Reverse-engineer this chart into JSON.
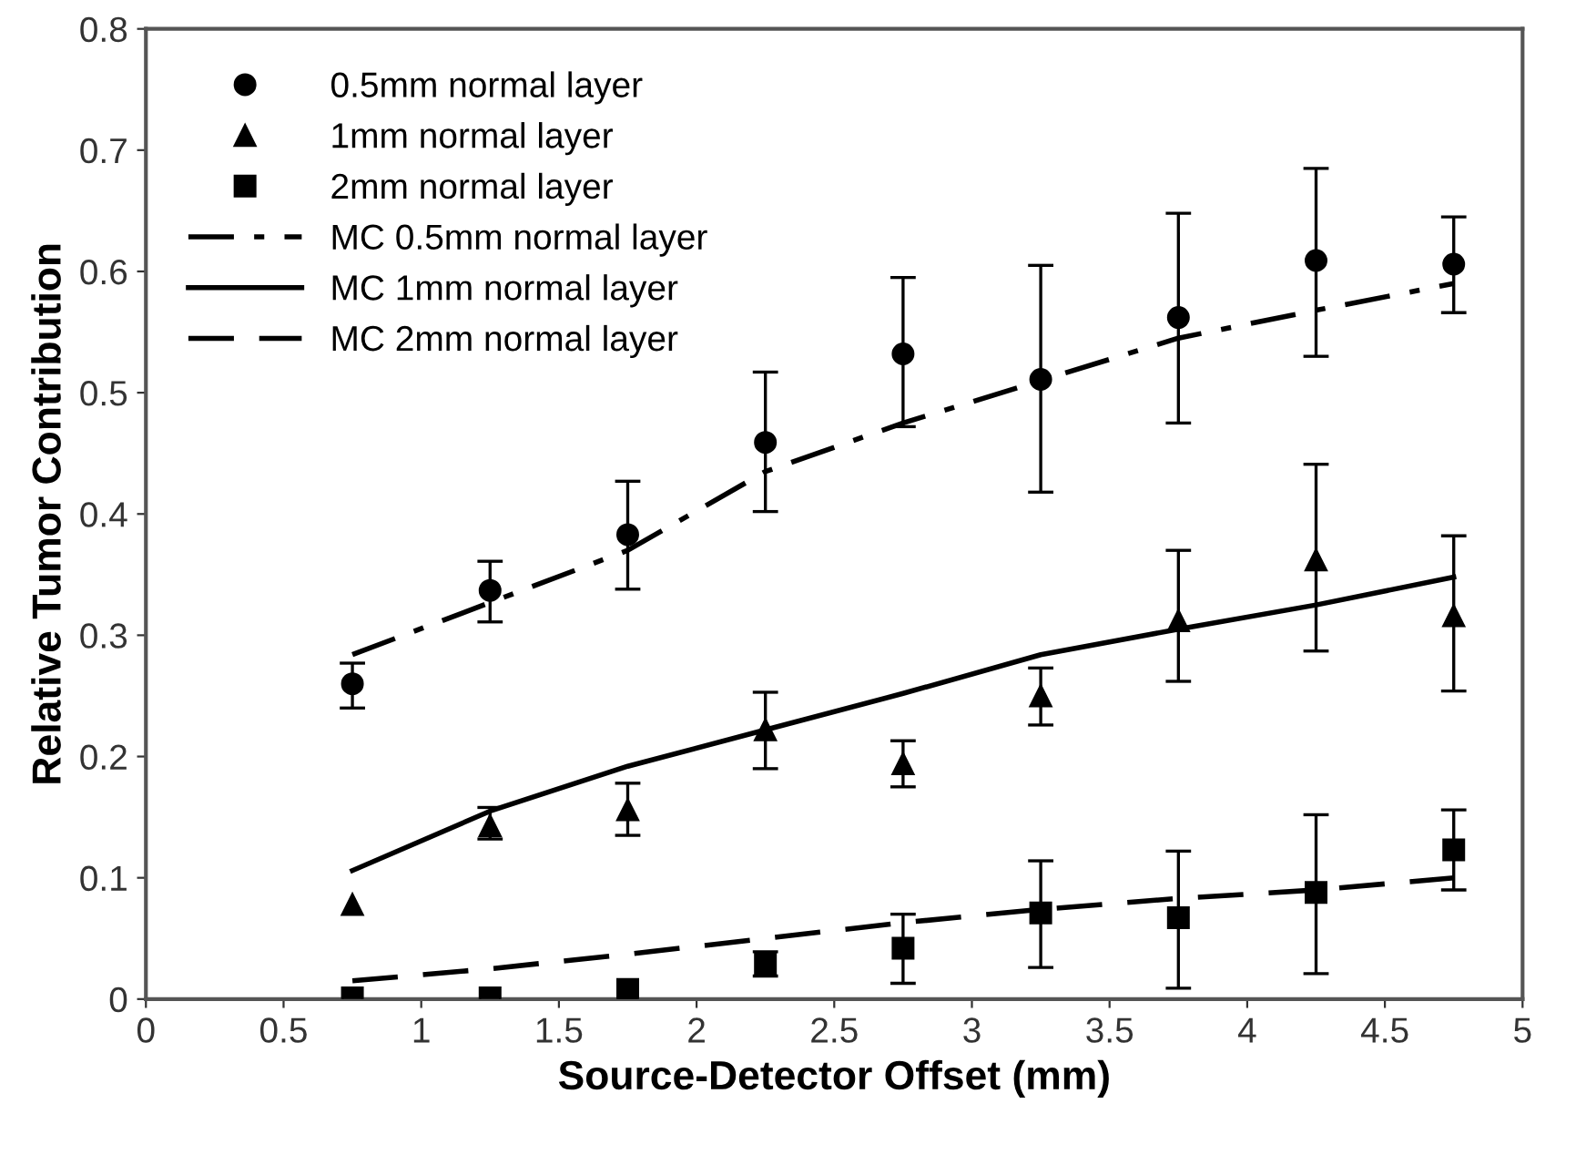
{
  "chart_data": {
    "type": "scatter",
    "xlabel": "Source-Detector Offset (mm)",
    "ylabel": "Relative Tumor Contribution",
    "xlim": [
      0,
      5
    ],
    "xticks": [
      0,
      0.5,
      1,
      1.5,
      2,
      2.5,
      3,
      3.5,
      4,
      4.5,
      5
    ],
    "ylim": [
      0,
      0.8
    ],
    "yticks": [
      0,
      0.1,
      0.2,
      0.3,
      0.4,
      0.5,
      0.6,
      0.7,
      0.8
    ],
    "grid": false,
    "legend": "top left",
    "x": [
      0.75,
      1.25,
      1.75,
      2.25,
      2.75,
      3.25,
      3.75,
      4.25,
      4.75
    ],
    "series": [
      {
        "name": "0.5mm normal layer",
        "marker": "circle",
        "color": "#000000",
        "values": [
          0.26,
          0.337,
          0.383,
          0.459,
          0.532,
          0.511,
          0.562,
          0.609,
          0.606
        ],
        "errors": [
          [
            0.24,
            0.277
          ],
          [
            0.311,
            0.361
          ],
          [
            0.338,
            0.427
          ],
          [
            0.402,
            0.517
          ],
          [
            0.472,
            0.595
          ],
          [
            0.418,
            0.605
          ],
          [
            0.475,
            0.648
          ],
          [
            0.53,
            0.685
          ],
          [
            0.566,
            0.645
          ]
        ]
      },
      {
        "name": "1mm normal layer",
        "marker": "triangle",
        "color": "#000000",
        "values": [
          0.078,
          0.143,
          0.156,
          0.222,
          0.194,
          0.25,
          0.312,
          0.362,
          0.316
        ],
        "errors": [
          null,
          [
            0.132,
            0.158
          ],
          [
            0.135,
            0.178
          ],
          [
            0.19,
            0.253
          ],
          [
            0.175,
            0.213
          ],
          [
            0.226,
            0.273
          ],
          [
            0.262,
            0.37
          ],
          [
            0.287,
            0.441
          ],
          [
            0.254,
            0.382
          ]
        ]
      },
      {
        "name": "2mm normal layer",
        "marker": "square",
        "color": "#000000",
        "values": [
          0.001,
          0.001,
          0.008,
          0.029,
          0.042,
          0.071,
          0.067,
          0.088,
          0.123
        ],
        "errors": [
          null,
          null,
          null,
          [
            0.019,
            0.039
          ],
          [
            0.013,
            0.07
          ],
          [
            0.026,
            0.114
          ],
          [
            0.009,
            0.122
          ],
          [
            0.021,
            0.152
          ],
          [
            0.09,
            0.156
          ]
        ]
      },
      {
        "name": "MC 0.5mm normal layer",
        "type": "line",
        "line_style": "dashdot",
        "color": "#000000",
        "values": [
          0.284,
          0.327,
          0.37,
          0.435,
          0.475,
          0.51,
          0.545,
          0.568,
          0.59
        ]
      },
      {
        "name": "MC 1mm normal layer",
        "type": "line",
        "line_style": "solid",
        "color": "#000000",
        "values": [
          0.106,
          0.155,
          0.192,
          0.222,
          0.252,
          0.284,
          0.305,
          0.325,
          0.348
        ]
      },
      {
        "name": "MC 2mm normal layer",
        "type": "line",
        "line_style": "dashed",
        "color": "#000000",
        "values": [
          0.015,
          0.025,
          0.037,
          0.05,
          0.063,
          0.074,
          0.083,
          0.09,
          0.1
        ]
      }
    ]
  }
}
